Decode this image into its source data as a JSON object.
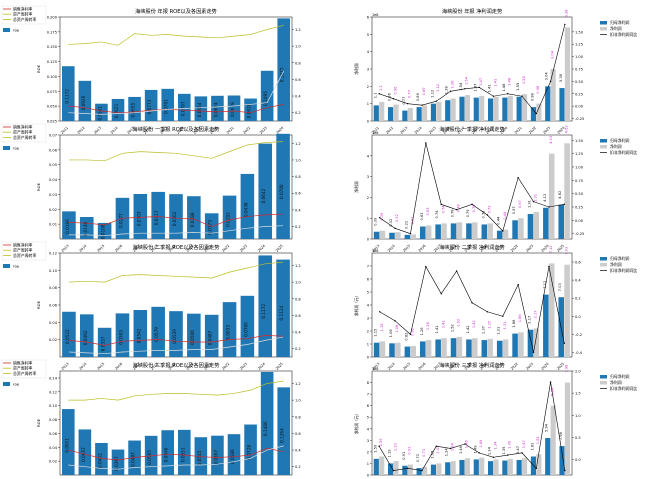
{
  "chart_data": [
    {
      "type": "bar",
      "title": "海峡股份  年报 ROE以及各因素走势",
      "ylabel": "ROE",
      "legend_bar": "roe",
      "legend_lines": [
        "销售净利率",
        "资产周转率",
        "总资产周转率"
      ],
      "categories": [
        "2011",
        "2012",
        "2013",
        "2014",
        "2015",
        "2016",
        "2017",
        "2018",
        "2019",
        "2020",
        "2021",
        "2022",
        "2023",
        "2024"
      ],
      "roe_labels": [
        "0.1172",
        "0.0926",
        "0.0541",
        "0.0621",
        "0.0655",
        "0.0773",
        "0.0791",
        "0.0707",
        "0.0664",
        "0.0674",
        "0.0679",
        "0.0628",
        "0.1095",
        "0.1977"
      ],
      "ylim": [
        0.025,
        0.2
      ],
      "yticks": [
        "0.025",
        "0.050",
        "0.075",
        "0.100",
        "0.125",
        "0.150",
        "0.175",
        "0.200"
      ],
      "y2lim": [
        0.1,
        1.35
      ],
      "y2ticks": [
        "0.2",
        "0.4",
        "0.6",
        "0.8",
        "1.0",
        "1.2"
      ],
      "series_lines": [
        {
          "name": "销售净利率",
          "color": "#d62728",
          "values": [
            0.28,
            0.26,
            0.22,
            0.2,
            0.21,
            0.23,
            0.24,
            0.23,
            0.22,
            0.21,
            0.22,
            0.2,
            0.26,
            0.3
          ]
        },
        {
          "name": "资产周转率",
          "color": "#bcbd22",
          "values": [
            1.02,
            1.03,
            1.05,
            1.01,
            1.15,
            1.13,
            1.14,
            1.12,
            1.11,
            1.1,
            1.12,
            1.14,
            1.2,
            1.25
          ]
        },
        {
          "name": "总资产周转率",
          "color": "#dddddd",
          "values": [
            0.2,
            0.19,
            0.18,
            0.19,
            0.2,
            0.22,
            0.24,
            0.25,
            0.26,
            0.27,
            0.28,
            0.3,
            0.32,
            0.7
          ]
        }
      ]
    },
    {
      "type": "bar",
      "title": "海峡股份  一季报 ROE以及各因素走势",
      "ylabel": "ROE",
      "legend_bar": "roe",
      "legend_lines": [
        "销售净利率",
        "资产周转率",
        "总资产周转率"
      ],
      "categories": [
        "2013",
        "2014",
        "2015",
        "2016",
        "2017",
        "2018",
        "2019",
        "2020",
        "2021",
        "2022",
        "2023",
        "2024",
        "2025"
      ],
      "roe_labels": [
        "0.0186",
        "0.0148",
        "0.0108",
        "0.0277",
        "0.0303",
        "0.0317",
        "0.0302",
        "0.0288",
        "0.0173",
        "0.0292",
        "0.0438",
        "0.0642",
        "0.0708"
      ],
      "ylim": [
        0.0,
        0.07
      ],
      "yticks": [
        "0.01",
        "0.02",
        "0.03",
        "0.04",
        "0.05",
        "0.06",
        "0.07"
      ],
      "y2lim": [
        0.05,
        1.3
      ],
      "y2ticks": [
        "0.2",
        "0.4",
        "0.6",
        "0.8",
        "1.0",
        "1.2"
      ],
      "series_lines": [
        {
          "name": "销售净利率",
          "color": "#d62728",
          "values": [
            0.25,
            0.24,
            0.22,
            0.3,
            0.31,
            0.32,
            0.3,
            0.29,
            0.2,
            0.28,
            0.32,
            0.34,
            0.35
          ]
        },
        {
          "name": "资产周转率",
          "color": "#bcbd22",
          "values": [
            1.0,
            1.0,
            0.99,
            1.08,
            1.1,
            1.09,
            1.08,
            1.05,
            1.02,
            1.1,
            1.18,
            1.21,
            1.22
          ]
        },
        {
          "name": "总资产周转率",
          "color": "#dddddd",
          "values": [
            0.1,
            0.1,
            0.09,
            0.11,
            0.12,
            0.12,
            0.12,
            0.13,
            0.12,
            0.15,
            0.18,
            0.2,
            0.21
          ]
        }
      ]
    },
    {
      "type": "bar",
      "title": "海峡股份  二季报 ROE以及各因素走势",
      "ylabel": "ROE",
      "legend_bar": "roe",
      "legend_lines": [
        "销售净利率",
        "资产周转率",
        "总资产周转率"
      ],
      "categories": [
        "2013",
        "2014",
        "2015",
        "2016",
        "2017",
        "2018",
        "2019",
        "2020",
        "2021",
        "2022",
        "2023",
        "2024",
        "2025"
      ],
      "roe_labels": [
        "0.0522",
        "0.0492",
        "0.0337",
        "0.0503",
        "0.0542",
        "0.0579",
        "0.0529",
        "0.0500",
        "0.0487",
        "0.0633",
        "0.0706",
        "0.1172",
        "0.1124"
      ],
      "ylim": [
        0.0,
        0.12
      ],
      "yticks": [
        "0.02",
        "0.04",
        "0.06",
        "0.08",
        "0.10",
        "0.12"
      ],
      "y2lim": [
        0.1,
        1.35
      ],
      "y2ticks": [
        "0.2",
        "0.4",
        "0.6",
        "0.8",
        "1.0",
        "1.2"
      ],
      "series_lines": [
        {
          "name": "销售净利率",
          "color": "#d62728",
          "values": [
            0.3,
            0.28,
            0.24,
            0.29,
            0.3,
            0.31,
            0.29,
            0.28,
            0.28,
            0.31,
            0.32,
            0.36,
            0.35
          ]
        },
        {
          "name": "资产周转率",
          "color": "#bcbd22",
          "values": [
            1.0,
            1.01,
            1.0,
            1.08,
            1.09,
            1.08,
            1.07,
            1.06,
            1.05,
            1.12,
            1.17,
            1.22,
            1.24
          ]
        },
        {
          "name": "总资产周转率",
          "color": "#dddddd",
          "values": [
            0.16,
            0.15,
            0.14,
            0.16,
            0.17,
            0.18,
            0.18,
            0.19,
            0.19,
            0.22,
            0.25,
            0.3,
            0.34
          ]
        }
      ]
    },
    {
      "type": "bar",
      "title": "海峡股份  三季报 ROE以及各因素走势",
      "ylabel": "ROE",
      "legend_bar": "roe",
      "legend_lines": [
        "销售净利率",
        "资产周转率",
        "总资产周转率"
      ],
      "categories": [
        "2011",
        "2012",
        "2013",
        "2014",
        "2015",
        "2016",
        "2017",
        "2018",
        "2019",
        "2020",
        "2021",
        "2022",
        "2023",
        "2024"
      ],
      "roe_labels": [
        "0.0951",
        "0.0657",
        "0.0462",
        "0.0367",
        "0.0497",
        "0.0565",
        "0.0646",
        "0.0651",
        "0.0545",
        "0.0567",
        "0.0589",
        "0.0728",
        "0.1486",
        "0.1264"
      ],
      "ylim": [
        0.0,
        0.15
      ],
      "yticks": [
        "0.02",
        "0.04",
        "0.06",
        "0.08",
        "0.10",
        "0.12",
        "0.14"
      ],
      "y2lim": [
        0.1,
        1.35
      ],
      "y2ticks": [
        "0.2",
        "0.4",
        "0.6",
        "0.8",
        "1.0",
        "1.2"
      ],
      "series_lines": [
        {
          "name": "销售净利率",
          "color": "#d62728",
          "values": [
            0.4,
            0.35,
            0.3,
            0.28,
            0.31,
            0.33,
            0.35,
            0.34,
            0.32,
            0.31,
            0.32,
            0.34,
            0.42,
            0.38
          ]
        },
        {
          "name": "资产周转率",
          "color": "#bcbd22",
          "values": [
            1.0,
            1.0,
            1.02,
            1.0,
            1.05,
            1.07,
            1.08,
            1.08,
            1.07,
            1.06,
            1.08,
            1.12,
            1.2,
            1.23
          ]
        },
        {
          "name": "总资产周转率",
          "color": "#dddddd",
          "values": [
            0.22,
            0.2,
            0.18,
            0.17,
            0.19,
            0.2,
            0.21,
            0.22,
            0.22,
            0.23,
            0.26,
            0.3,
            0.4,
            0.45
          ]
        }
      ]
    },
    {
      "type": "bar",
      "title": "海峡股份  年报  净利润走势",
      "ylabel": "净利润",
      "exponent": "1e8",
      "legend": [
        "归母净利润",
        "净利润",
        "扣非净利润同比"
      ],
      "categories": [
        "2011",
        "2012",
        "2013",
        "2014",
        "2015",
        "2016",
        "2017",
        "2018",
        "2019",
        "2020",
        "2021",
        "2022",
        "2023",
        "2024"
      ],
      "net_values": [
        0.9,
        0.8,
        0.6,
        0.8,
        1.0,
        1.2,
        1.4,
        1.35,
        1.3,
        1.35,
        1.4,
        0.8,
        2.0,
        1.9
      ],
      "parent_values": [
        1.1,
        0.95,
        0.75,
        0.9,
        1.1,
        1.3,
        1.5,
        1.45,
        1.4,
        1.45,
        1.55,
        1.0,
        3.0,
        5.4
      ],
      "bar_labels": [
        "1.1",
        "0.96",
        "0.77",
        "0.89",
        "1.12",
        "1.28",
        "1.54",
        "1.47",
        "1.41",
        "1.48",
        "1.55",
        "0.98",
        "3.04",
        "5.38"
      ],
      "yoy": [
        0.25,
        0.15,
        0.05,
        0.02,
        0.1,
        0.3,
        0.35,
        0.38,
        0.2,
        0.25,
        0.2,
        -0.15,
        0.5,
        1.65
      ],
      "ylim": [
        0,
        6
      ],
      "yticks": [
        "0",
        "1",
        "2",
        "3",
        "4",
        "5",
        "6"
      ],
      "y2lim": [
        -0.3,
        1.8
      ],
      "y2ticks": [
        "-0.25",
        "0.00",
        "0.25",
        "0.50",
        "0.75",
        "1.00",
        "1.25",
        "1.50"
      ]
    },
    {
      "type": "bar",
      "title": "海峡股份  一季报  净利润走势",
      "ylabel": "净利润",
      "exponent": "1e8",
      "legend": [
        "归母净利润",
        "净利润",
        "扣非净利润同比"
      ],
      "categories": [
        "2013",
        "2014",
        "2015",
        "2016",
        "2017",
        "2018",
        "2019",
        "2020",
        "2021",
        "2022",
        "2023",
        "2024",
        "2025"
      ],
      "net_values": [
        0.35,
        0.3,
        0.2,
        0.6,
        0.7,
        0.75,
        0.75,
        0.7,
        0.4,
        0.9,
        1.2,
        1.5,
        1.65
      ],
      "parent_values": [
        0.4,
        0.33,
        0.22,
        0.65,
        0.75,
        0.8,
        0.8,
        0.75,
        0.45,
        1.0,
        1.3,
        4.1,
        4.6
      ],
      "bar_labels": [
        "0.39",
        "0.32",
        "0.21",
        "0.63",
        "0.74",
        "0.78",
        "0.79",
        "0.72",
        "0.44",
        "0.97",
        "1.31",
        "4.13",
        "4.62"
      ],
      "yoy": [
        0.05,
        -0.15,
        -0.25,
        1.45,
        0.3,
        0.2,
        0.3,
        0.1,
        -0.2,
        0.8,
        0.35,
        0.25,
        0.3
      ],
      "ylim": [
        0,
        5
      ],
      "yticks": [
        "0",
        "1",
        "2",
        "3",
        "4"
      ],
      "y2lim": [
        -0.35,
        1.6
      ],
      "y2ticks": [
        "-0.25",
        "0.00",
        "0.25",
        "0.50",
        "0.75",
        "1.00",
        "1.25",
        "1.50"
      ]
    },
    {
      "type": "bar",
      "title": "海峡股份  二季报  净利润走势",
      "ylabel": "净利润（元）",
      "exponent": "1e8",
      "legend": [
        "归母净利润",
        "净利润",
        "扣非净利润同比"
      ],
      "categories": [
        "2013",
        "2014",
        "2015",
        "2016",
        "2017",
        "2018",
        "2019",
        "2020",
        "2021",
        "2022",
        "2023",
        "2024",
        "2025"
      ],
      "net_values": [
        1.1,
        1.05,
        0.8,
        1.2,
        1.35,
        1.45,
        1.35,
        1.3,
        1.25,
        1.8,
        2.1,
        4.8,
        4.6
      ],
      "parent_values": [
        1.2,
        1.1,
        0.85,
        1.3,
        1.45,
        1.55,
        1.45,
        1.4,
        1.35,
        1.9,
        2.2,
        7.2,
        7.1
      ],
      "bar_labels": [
        "1.15",
        "1.08",
        "0.82",
        "1.26",
        "1.41",
        "1.52",
        "1.42",
        "1.37",
        "1.31",
        "1.86",
        "2.17",
        "7.12",
        "7.03"
      ],
      "yoy": [
        0.05,
        -0.05,
        -0.2,
        0.55,
        0.25,
        0.5,
        0.15,
        0.05,
        0.0,
        0.35,
        -0.4,
        0.55,
        -0.3
      ],
      "ylim": [
        0,
        8
      ],
      "yticks": [
        "0",
        "1",
        "2",
        "3",
        "4",
        "5",
        "6",
        "7"
      ],
      "y2lim": [
        -0.45,
        0.7
      ],
      "y2ticks": [
        "-0.4",
        "-0.2",
        "0.0",
        "0.2",
        "0.4",
        "0.6"
      ]
    },
    {
      "type": "bar",
      "title": "海峡股份  三季报  净利润走势",
      "ylabel": "净利润（元）",
      "exponent": "1e8",
      "legend": [
        "归母净利润",
        "净利润",
        "扣非净利润同比"
      ],
      "categories": [
        "2011",
        "2012",
        "2013",
        "2014",
        "2015",
        "2016",
        "2017",
        "2018",
        "2019",
        "2020",
        "2021",
        "2022",
        "2023",
        "2024"
      ],
      "net_values": [
        1.4,
        1.0,
        0.8,
        0.6,
        0.9,
        1.1,
        1.3,
        1.35,
        1.2,
        1.25,
        1.3,
        1.6,
        3.2,
        2.5
      ],
      "parent_values": [
        1.6,
        1.2,
        0.9,
        0.7,
        1.0,
        1.2,
        1.45,
        1.5,
        1.35,
        1.4,
        1.45,
        1.8,
        6.0,
        8.0
      ],
      "bar_labels": [
        "1.59",
        "1.19",
        "0.91",
        "0.73",
        "1.05",
        "1.24",
        "1.46",
        "1.49",
        "1.34",
        "1.39",
        "1.47",
        "1.81",
        "5.94",
        "7.98"
      ],
      "yoy": [
        0.3,
        -0.25,
        -0.2,
        -0.25,
        0.3,
        0.25,
        0.35,
        0.15,
        0.05,
        0.1,
        0.15,
        -0.2,
        1.75,
        -0.25
      ],
      "ylim": [
        0,
        9
      ],
      "yticks": [
        "0",
        "1",
        "2",
        "3",
        "4",
        "5",
        "6",
        "7",
        "8"
      ],
      "y2lim": [
        -0.35,
        2.0
      ],
      "y2ticks": [
        "0.0",
        "0.5",
        "1.0",
        "1.5",
        "2.0"
      ]
    }
  ]
}
